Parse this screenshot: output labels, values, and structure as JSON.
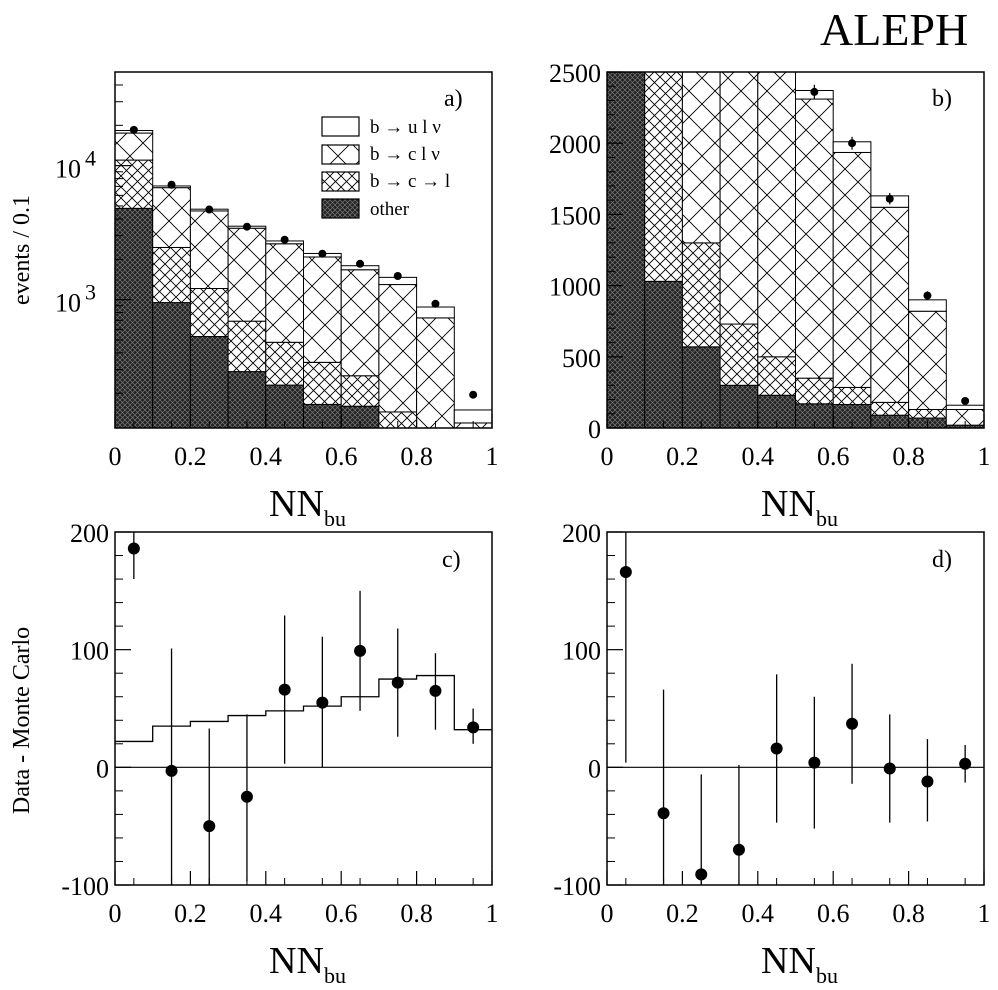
{
  "header": {
    "experiment": "ALEPH"
  },
  "legend": {
    "b_to_ulnu": "b → u l ν",
    "b_to_clnu": "b → c l ν",
    "b_to_c_to_l": "b → c → l",
    "other": "other"
  },
  "chart_data": [
    {
      "panel": "a)",
      "type": "bar",
      "stacked": true,
      "yscale": "log",
      "xlabel": "NN",
      "xlabel_subscript": "bu",
      "ylabel": "events / 0.1",
      "xlim": [
        0,
        1
      ],
      "xticks": [
        "0",
        "0.2",
        "0.4",
        "0.6",
        "0.8",
        "1"
      ],
      "yticks": [
        {
          "value": 1000,
          "label": "10",
          "exp": "3"
        },
        {
          "value": 10000,
          "label": "10",
          "exp": "4"
        }
      ],
      "bin_edges": [
        0,
        0.1,
        0.2,
        0.3,
        0.4,
        0.5,
        0.6,
        0.7,
        0.8,
        0.9,
        1.0
      ],
      "series": [
        {
          "name": "other",
          "values": [
            4800,
            950,
            530,
            290,
            230,
            165,
            160,
            0,
            0,
            0
          ]
        },
        {
          "name": "b → c → l",
          "values": [
            6200,
            1500,
            680,
            400,
            250,
            175,
            110,
            145,
            110,
            0
          ]
        },
        {
          "name": "b → c l ν",
          "values": [
            6500,
            4400,
            3380,
            2720,
            2130,
            1740,
            1400,
            1150,
            620,
            120
          ]
        },
        {
          "name": "b → u l ν",
          "values": [
            800,
            200,
            140,
            120,
            130,
            130,
            120,
            170,
            150,
            30
          ]
        }
      ],
      "data_points": [
        {
          "x": 0.05,
          "y": 18500
        },
        {
          "x": 0.15,
          "y": 7200
        },
        {
          "x": 0.25,
          "y": 4700
        },
        {
          "x": 0.35,
          "y": 3500
        },
        {
          "x": 0.45,
          "y": 2800
        },
        {
          "x": 0.55,
          "y": 2200
        },
        {
          "x": 0.65,
          "y": 1850
        },
        {
          "x": 0.75,
          "y": 1500
        },
        {
          "x": 0.85,
          "y": 930
        },
        {
          "x": 0.95,
          "y": 195
        }
      ]
    },
    {
      "panel": "b)",
      "type": "bar",
      "stacked": true,
      "yscale": "linear",
      "xlabel": "NN",
      "xlabel_subscript": "bu",
      "xlim": [
        0,
        1
      ],
      "ylim": [
        0,
        2500
      ],
      "xticks": [
        "0",
        "0.2",
        "0.4",
        "0.6",
        "0.8",
        "1"
      ],
      "yticks": [
        0,
        500,
        1000,
        1500,
        2000,
        2500
      ],
      "bin_edges": [
        0,
        0.1,
        0.2,
        0.3,
        0.4,
        0.5,
        0.6,
        0.7,
        0.8,
        0.9,
        1.0
      ],
      "series": [
        {
          "name": "other",
          "values": [
            2500,
            1030,
            570,
            300,
            230,
            170,
            165,
            90,
            70,
            20
          ]
        },
        {
          "name": "b → c → l",
          "values": [
            0,
            1470,
            730,
            430,
            270,
            180,
            120,
            90,
            60,
            0
          ]
        },
        {
          "name": "b → c l ν",
          "values": [
            0,
            0,
            1200,
            1770,
            2000,
            1960,
            1650,
            1370,
            690,
            110
          ]
        },
        {
          "name": "b → u l ν",
          "values": [
            0,
            0,
            0,
            0,
            0,
            60,
            75,
            80,
            80,
            30
          ]
        }
      ],
      "data_points": [
        {
          "x": 0.55,
          "y": 2360,
          "err": 50
        },
        {
          "x": 0.65,
          "y": 2000,
          "err": 45
        },
        {
          "x": 0.75,
          "y": 1610,
          "err": 40
        },
        {
          "x": 0.85,
          "y": 930,
          "err": 30
        },
        {
          "x": 0.95,
          "y": 190,
          "err": 15
        }
      ]
    },
    {
      "panel": "c)",
      "type": "scatter",
      "xlabel": "NN",
      "xlabel_subscript": "bu",
      "ylabel": "Data - Monte Carlo",
      "xlim": [
        0,
        1
      ],
      "ylim": [
        -100,
        200
      ],
      "xticks": [
        "0",
        "0.2",
        "0.4",
        "0.6",
        "0.8",
        "1"
      ],
      "yticks": [
        -100,
        0,
        100,
        200
      ],
      "reference_line": 0,
      "step_curve": {
        "bin_edges": [
          0,
          0.1,
          0.2,
          0.3,
          0.4,
          0.5,
          0.6,
          0.7,
          0.8,
          0.9,
          1.0
        ],
        "values": [
          22,
          35,
          39,
          44,
          48,
          52,
          60,
          75,
          78,
          32
        ]
      },
      "points": [
        {
          "x": 0.05,
          "y": 186,
          "err_low": 160,
          "err_high": 200
        },
        {
          "x": 0.15,
          "y": -3,
          "err_low": -100,
          "err_high": 101
        },
        {
          "x": 0.25,
          "y": -50,
          "err_low": -100,
          "err_high": 33
        },
        {
          "x": 0.35,
          "y": -25,
          "err_low": -97,
          "err_high": 45
        },
        {
          "x": 0.45,
          "y": 66,
          "err_low": 3,
          "err_high": 129
        },
        {
          "x": 0.55,
          "y": 55,
          "err_low": 0,
          "err_high": 111
        },
        {
          "x": 0.65,
          "y": 99,
          "err_low": 48,
          "err_high": 150
        },
        {
          "x": 0.75,
          "y": 72,
          "err_low": 26,
          "err_high": 118
        },
        {
          "x": 0.85,
          "y": 65,
          "err_low": 32,
          "err_high": 97
        },
        {
          "x": 0.95,
          "y": 34,
          "err_low": 20,
          "err_high": 50
        }
      ]
    },
    {
      "panel": "d)",
      "type": "scatter",
      "xlabel": "NN",
      "xlabel_subscript": "bu",
      "xlim": [
        0,
        1
      ],
      "ylim": [
        -100,
        200
      ],
      "xticks": [
        "0",
        "0.2",
        "0.4",
        "0.6",
        "0.8",
        "1"
      ],
      "yticks": [
        -100,
        0,
        100,
        200
      ],
      "reference_line": 0,
      "points": [
        {
          "x": 0.05,
          "y": 166,
          "err_low": 4,
          "err_high": 200
        },
        {
          "x": 0.15,
          "y": -39,
          "err_low": -100,
          "err_high": 66
        },
        {
          "x": 0.25,
          "y": -91,
          "err_low": -100,
          "err_high": -6
        },
        {
          "x": 0.35,
          "y": -70,
          "err_low": -100,
          "err_high": 2
        },
        {
          "x": 0.45,
          "y": 16,
          "err_low": -47,
          "err_high": 79
        },
        {
          "x": 0.55,
          "y": 4,
          "err_low": -52,
          "err_high": 60
        },
        {
          "x": 0.65,
          "y": 37,
          "err_low": -14,
          "err_high": 88
        },
        {
          "x": 0.75,
          "y": -1,
          "err_low": -47,
          "err_high": 45
        },
        {
          "x": 0.85,
          "y": -12,
          "err_low": -46,
          "err_high": 24
        },
        {
          "x": 0.95,
          "y": 3,
          "err_low": -13,
          "err_high": 19
        }
      ]
    }
  ]
}
